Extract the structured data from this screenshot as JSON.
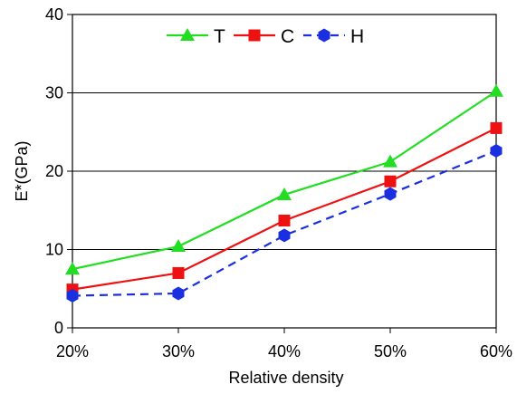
{
  "chart_data": {
    "type": "line",
    "title": "",
    "xlabel": "Relative density",
    "ylabel": "E*(GPa)",
    "categories": [
      "20%",
      "30%",
      "40%",
      "50%",
      "60%"
    ],
    "ylim": [
      0,
      40
    ],
    "yticks": [
      0,
      10,
      20,
      30,
      40
    ],
    "grid": "horizontal",
    "legend_position": "top-center",
    "series": [
      {
        "name": "T",
        "values": [
          7.5,
          10.4,
          17.0,
          21.2,
          30.2
        ],
        "color": "#22dd22",
        "marker": "triangle",
        "line": "solid"
      },
      {
        "name": "C",
        "values": [
          4.9,
          7.0,
          13.7,
          18.7,
          25.5
        ],
        "color": "#ee1111",
        "marker": "square",
        "line": "solid"
      },
      {
        "name": "H",
        "values": [
          4.1,
          4.4,
          11.8,
          17.1,
          22.6
        ],
        "color": "#1a2fe0",
        "marker": "hexagon",
        "line": "dashed"
      }
    ]
  }
}
